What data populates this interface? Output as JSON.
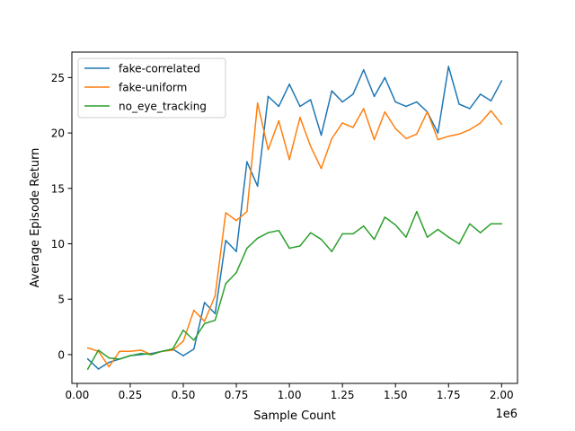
{
  "chart_data": {
    "type": "line",
    "xlabel": "Sample Count",
    "ylabel": "Average Episode Return",
    "x_offset_label": "1e6",
    "xlim": [
      -0.025,
      2.075
    ],
    "ylim": [
      -2.6,
      27.3
    ],
    "x_ticks": [
      0.0,
      0.25,
      0.5,
      0.75,
      1.0,
      1.25,
      1.5,
      1.75,
      2.0
    ],
    "x_tick_labels": [
      "0.00",
      "0.25",
      "0.50",
      "0.75",
      "1.00",
      "1.25",
      "1.50",
      "1.75",
      "2.00"
    ],
    "y_ticks": [
      0,
      5,
      10,
      15,
      20,
      25
    ],
    "y_tick_labels": [
      "0",
      "5",
      "10",
      "15",
      "20",
      "25"
    ],
    "grid": false,
    "legend_position": "top-left",
    "x": [
      0.05,
      0.1,
      0.15,
      0.2,
      0.25,
      0.3,
      0.35,
      0.4,
      0.45,
      0.5,
      0.55,
      0.6,
      0.65,
      0.7,
      0.75,
      0.8,
      0.85,
      0.9,
      0.95,
      1.0,
      1.05,
      1.1,
      1.15,
      1.2,
      1.25,
      1.3,
      1.35,
      1.4,
      1.45,
      1.5,
      1.55,
      1.6,
      1.65,
      1.7,
      1.75,
      1.8,
      1.85,
      1.9,
      1.95,
      2.0
    ],
    "series": [
      {
        "name": "fake-correlated",
        "color": "#1f77b4",
        "values": [
          -0.4,
          -1.3,
          -0.7,
          -0.4,
          -0.1,
          0.0,
          0.1,
          0.3,
          0.5,
          -0.1,
          0.5,
          4.7,
          3.7,
          10.3,
          9.3,
          17.4,
          15.2,
          23.3,
          22.4,
          24.4,
          22.4,
          23.0,
          19.8,
          23.8,
          22.8,
          23.5,
          25.7,
          23.3,
          25.0,
          22.8,
          22.4,
          22.8,
          21.9,
          20.0,
          26.0,
          22.6,
          22.2,
          23.5,
          22.9,
          24.7
        ]
      },
      {
        "name": "fake-uniform",
        "color": "#ff7f0e",
        "values": [
          0.6,
          0.3,
          -1.1,
          0.3,
          0.3,
          0.4,
          0.0,
          0.3,
          0.4,
          1.2,
          4.0,
          3.0,
          5.3,
          12.8,
          12.1,
          12.9,
          22.7,
          18.5,
          21.1,
          17.6,
          21.4,
          18.8,
          16.8,
          19.5,
          20.9,
          20.5,
          22.2,
          19.4,
          21.9,
          20.4,
          19.5,
          19.9,
          21.9,
          19.4,
          19.7,
          19.9,
          20.3,
          20.9,
          22.0,
          20.8
        ]
      },
      {
        "name": "no_eye_tracking",
        "color": "#2ca02c",
        "values": [
          -1.3,
          0.4,
          -0.3,
          -0.4,
          -0.1,
          0.1,
          0.0,
          0.3,
          0.5,
          2.2,
          1.3,
          2.8,
          3.1,
          6.4,
          7.4,
          9.6,
          10.5,
          11.0,
          11.2,
          9.6,
          9.8,
          11.0,
          10.4,
          9.3,
          10.9,
          10.9,
          11.6,
          10.4,
          12.4,
          11.7,
          10.6,
          12.9,
          10.6,
          11.3,
          10.6,
          10.0,
          11.8,
          11.0,
          11.8,
          11.8
        ]
      }
    ]
  }
}
